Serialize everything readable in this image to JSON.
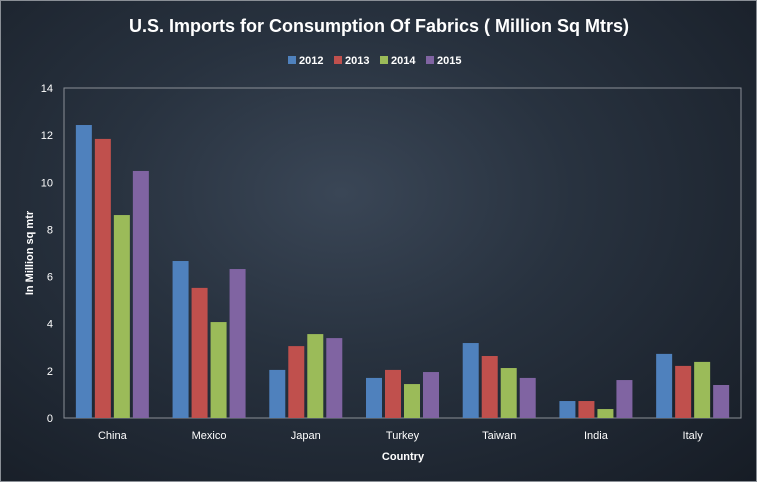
{
  "chart_data": {
    "type": "bar",
    "title": "U.S. Imports for Consumption  Of Fabrics ( Million Sq Mtrs)",
    "xlabel": "Country",
    "ylabel": "In Million sq mtr",
    "ylim": [
      0,
      14
    ],
    "yticks": [
      0,
      2,
      4,
      6,
      8,
      10,
      12,
      14
    ],
    "grid": false,
    "legend": "top",
    "categories": [
      "China",
      "Mexico",
      "Japan",
      "Turkey",
      "Taiwan",
      "India",
      "Italy"
    ],
    "series": [
      {
        "name": "2012",
        "color": "#4f81bd",
        "values": [
          12.43,
          6.66,
          2.04,
          1.7,
          3.18,
          0.72,
          2.72
        ]
      },
      {
        "name": "2013",
        "color": "#c0504d",
        "values": [
          11.84,
          5.52,
          3.05,
          2.04,
          2.63,
          0.72,
          2.21
        ]
      },
      {
        "name": "2014",
        "color": "#9bbb59",
        "values": [
          8.61,
          4.07,
          3.56,
          1.44,
          2.12,
          0.38,
          2.38
        ]
      },
      {
        "name": "2015",
        "color": "#8064a2",
        "values": [
          10.48,
          6.32,
          3.39,
          1.95,
          1.7,
          1.61,
          1.4
        ]
      }
    ]
  }
}
